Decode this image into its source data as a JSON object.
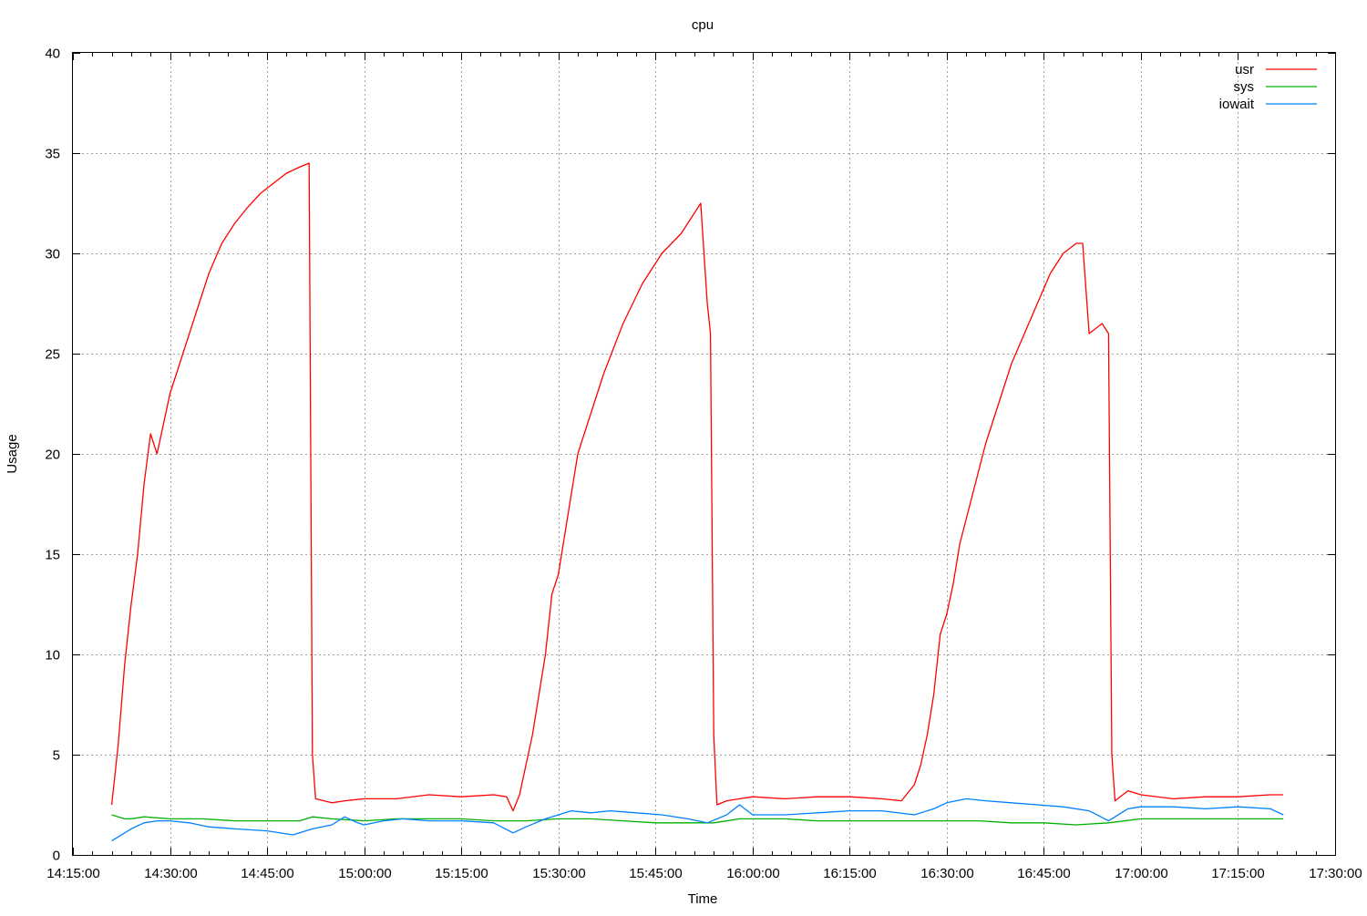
{
  "chart_data": {
    "type": "line",
    "title": "cpu",
    "xlabel": "Time",
    "ylabel": "Usage",
    "xlim": [
      "14:15:00",
      "17:30:00"
    ],
    "ylim": [
      0,
      40
    ],
    "x_ticks": [
      "14:15:00",
      "14:30:00",
      "14:45:00",
      "15:00:00",
      "15:15:00",
      "15:30:00",
      "15:45:00",
      "16:00:00",
      "16:15:00",
      "16:30:00",
      "16:45:00",
      "17:00:00",
      "17:15:00",
      "17:30:00"
    ],
    "y_ticks": [
      0,
      5,
      10,
      15,
      20,
      25,
      30,
      35,
      40
    ],
    "grid": true,
    "legend_position": "top-right",
    "series": [
      {
        "name": "usr",
        "color": "#ff0000",
        "points": [
          [
            "14:21:00",
            2.5
          ],
          [
            "14:22:00",
            5.5
          ],
          [
            "14:23:00",
            9.5
          ],
          [
            "14:24:00",
            12.5
          ],
          [
            "14:25:00",
            15.0
          ],
          [
            "14:26:00",
            18.5
          ],
          [
            "14:27:00",
            21.0
          ],
          [
            "14:28:00",
            20.0
          ],
          [
            "14:29:00",
            21.5
          ],
          [
            "14:30:00",
            23.0
          ],
          [
            "14:32:00",
            25.0
          ],
          [
            "14:34:00",
            27.0
          ],
          [
            "14:36:00",
            29.0
          ],
          [
            "14:38:00",
            30.5
          ],
          [
            "14:40:00",
            31.5
          ],
          [
            "14:42:00",
            32.3
          ],
          [
            "14:44:00",
            33.0
          ],
          [
            "14:46:00",
            33.5
          ],
          [
            "14:48:00",
            34.0
          ],
          [
            "14:50:00",
            34.3
          ],
          [
            "14:51:30",
            34.5
          ],
          [
            "14:52:00",
            5.0
          ],
          [
            "14:52:30",
            2.8
          ],
          [
            "14:55:00",
            2.6
          ],
          [
            "14:57:00",
            2.7
          ],
          [
            "15:00:00",
            2.8
          ],
          [
            "15:05:00",
            2.8
          ],
          [
            "15:10:00",
            3.0
          ],
          [
            "15:15:00",
            2.9
          ],
          [
            "15:20:00",
            3.0
          ],
          [
            "15:22:00",
            2.9
          ],
          [
            "15:23:00",
            2.2
          ],
          [
            "15:24:00",
            3.0
          ],
          [
            "15:25:00",
            4.5
          ],
          [
            "15:26:00",
            6.0
          ],
          [
            "15:27:00",
            8.0
          ],
          [
            "15:28:00",
            10.0
          ],
          [
            "15:29:00",
            13.0
          ],
          [
            "15:30:00",
            14.0
          ],
          [
            "15:31:00",
            16.0
          ],
          [
            "15:32:00",
            18.0
          ],
          [
            "15:33:00",
            20.0
          ],
          [
            "15:35:00",
            22.0
          ],
          [
            "15:37:00",
            24.0
          ],
          [
            "15:40:00",
            26.5
          ],
          [
            "15:43:00",
            28.5
          ],
          [
            "15:46:00",
            30.0
          ],
          [
            "15:49:00",
            31.0
          ],
          [
            "15:51:00",
            32.0
          ],
          [
            "15:52:00",
            32.5
          ],
          [
            "15:53:00",
            27.5
          ],
          [
            "15:53:30",
            26.0
          ],
          [
            "15:54:00",
            6.0
          ],
          [
            "15:54:30",
            2.5
          ],
          [
            "15:56:00",
            2.7
          ],
          [
            "15:58:00",
            2.8
          ],
          [
            "16:00:00",
            2.9
          ],
          [
            "16:05:00",
            2.8
          ],
          [
            "16:10:00",
            2.9
          ],
          [
            "16:15:00",
            2.9
          ],
          [
            "16:20:00",
            2.8
          ],
          [
            "16:23:00",
            2.7
          ],
          [
            "16:25:00",
            3.5
          ],
          [
            "16:26:00",
            4.5
          ],
          [
            "16:27:00",
            6.0
          ],
          [
            "16:28:00",
            8.0
          ],
          [
            "16:29:00",
            11.0
          ],
          [
            "16:30:00",
            12.0
          ],
          [
            "16:31:00",
            13.5
          ],
          [
            "16:32:00",
            15.5
          ],
          [
            "16:34:00",
            18.0
          ],
          [
            "16:36:00",
            20.5
          ],
          [
            "16:38:00",
            22.5
          ],
          [
            "16:40:00",
            24.5
          ],
          [
            "16:42:00",
            26.0
          ],
          [
            "16:44:00",
            27.5
          ],
          [
            "16:46:00",
            29.0
          ],
          [
            "16:48:00",
            30.0
          ],
          [
            "16:50:00",
            30.5
          ],
          [
            "16:51:00",
            30.5
          ],
          [
            "16:52:00",
            26.0
          ],
          [
            "16:54:00",
            26.5
          ],
          [
            "16:55:00",
            26.0
          ],
          [
            "16:55:30",
            5.0
          ],
          [
            "16:56:00",
            2.7
          ],
          [
            "16:58:00",
            3.2
          ],
          [
            "17:00:00",
            3.0
          ],
          [
            "17:05:00",
            2.8
          ],
          [
            "17:10:00",
            2.9
          ],
          [
            "17:15:00",
            2.9
          ],
          [
            "17:20:00",
            3.0
          ],
          [
            "17:22:00",
            3.0
          ]
        ]
      },
      {
        "name": "sys",
        "color": "#00b000",
        "points": [
          [
            "14:21:00",
            2.0
          ],
          [
            "14:22:00",
            1.9
          ],
          [
            "14:23:00",
            1.8
          ],
          [
            "14:24:00",
            1.8
          ],
          [
            "14:26:00",
            1.9
          ],
          [
            "14:30:00",
            1.8
          ],
          [
            "14:35:00",
            1.8
          ],
          [
            "14:40:00",
            1.7
          ],
          [
            "14:45:00",
            1.7
          ],
          [
            "14:50:00",
            1.7
          ],
          [
            "14:52:00",
            1.9
          ],
          [
            "14:55:00",
            1.8
          ],
          [
            "15:00:00",
            1.7
          ],
          [
            "15:05:00",
            1.8
          ],
          [
            "15:10:00",
            1.8
          ],
          [
            "15:15:00",
            1.8
          ],
          [
            "15:20:00",
            1.7
          ],
          [
            "15:25:00",
            1.7
          ],
          [
            "15:30:00",
            1.8
          ],
          [
            "15:35:00",
            1.8
          ],
          [
            "15:40:00",
            1.7
          ],
          [
            "15:45:00",
            1.6
          ],
          [
            "15:50:00",
            1.6
          ],
          [
            "15:54:00",
            1.6
          ],
          [
            "15:58:00",
            1.8
          ],
          [
            "16:00:00",
            1.8
          ],
          [
            "16:05:00",
            1.8
          ],
          [
            "16:10:00",
            1.7
          ],
          [
            "16:15:00",
            1.7
          ],
          [
            "16:20:00",
            1.7
          ],
          [
            "16:25:00",
            1.7
          ],
          [
            "16:30:00",
            1.7
          ],
          [
            "16:35:00",
            1.7
          ],
          [
            "16:40:00",
            1.6
          ],
          [
            "16:45:00",
            1.6
          ],
          [
            "16:50:00",
            1.5
          ],
          [
            "16:55:00",
            1.6
          ],
          [
            "17:00:00",
            1.8
          ],
          [
            "17:05:00",
            1.8
          ],
          [
            "17:10:00",
            1.8
          ],
          [
            "17:15:00",
            1.8
          ],
          [
            "17:20:00",
            1.8
          ],
          [
            "17:22:00",
            1.8
          ]
        ]
      },
      {
        "name": "iowait",
        "color": "#0080ff",
        "points": [
          [
            "14:21:00",
            0.7
          ],
          [
            "14:22:00",
            0.9
          ],
          [
            "14:24:00",
            1.3
          ],
          [
            "14:26:00",
            1.6
          ],
          [
            "14:28:00",
            1.7
          ],
          [
            "14:30:00",
            1.7
          ],
          [
            "14:33:00",
            1.6
          ],
          [
            "14:36:00",
            1.4
          ],
          [
            "14:40:00",
            1.3
          ],
          [
            "14:45:00",
            1.2
          ],
          [
            "14:49:00",
            1.0
          ],
          [
            "14:52:00",
            1.3
          ],
          [
            "14:55:00",
            1.5
          ],
          [
            "14:57:00",
            1.9
          ],
          [
            "14:59:00",
            1.6
          ],
          [
            "15:00:00",
            1.5
          ],
          [
            "15:03:00",
            1.7
          ],
          [
            "15:06:00",
            1.8
          ],
          [
            "15:10:00",
            1.7
          ],
          [
            "15:15:00",
            1.7
          ],
          [
            "15:20:00",
            1.6
          ],
          [
            "15:23:00",
            1.1
          ],
          [
            "15:25:00",
            1.4
          ],
          [
            "15:28:00",
            1.8
          ],
          [
            "15:30:00",
            2.0
          ],
          [
            "15:32:00",
            2.2
          ],
          [
            "15:35:00",
            2.1
          ],
          [
            "15:38:00",
            2.2
          ],
          [
            "15:42:00",
            2.1
          ],
          [
            "15:46:00",
            2.0
          ],
          [
            "15:50:00",
            1.8
          ],
          [
            "15:53:00",
            1.6
          ],
          [
            "15:56:00",
            2.0
          ],
          [
            "15:58:00",
            2.5
          ],
          [
            "16:00:00",
            2.0
          ],
          [
            "16:05:00",
            2.0
          ],
          [
            "16:10:00",
            2.1
          ],
          [
            "16:15:00",
            2.2
          ],
          [
            "16:20:00",
            2.2
          ],
          [
            "16:25:00",
            2.0
          ],
          [
            "16:28:00",
            2.3
          ],
          [
            "16:30:00",
            2.6
          ],
          [
            "16:33:00",
            2.8
          ],
          [
            "16:36:00",
            2.7
          ],
          [
            "16:40:00",
            2.6
          ],
          [
            "16:44:00",
            2.5
          ],
          [
            "16:48:00",
            2.4
          ],
          [
            "16:52:00",
            2.2
          ],
          [
            "16:55:00",
            1.7
          ],
          [
            "16:58:00",
            2.3
          ],
          [
            "17:00:00",
            2.4
          ],
          [
            "17:05:00",
            2.4
          ],
          [
            "17:10:00",
            2.3
          ],
          [
            "17:15:00",
            2.4
          ],
          [
            "17:20:00",
            2.3
          ],
          [
            "17:22:00",
            2.0
          ]
        ]
      }
    ]
  }
}
